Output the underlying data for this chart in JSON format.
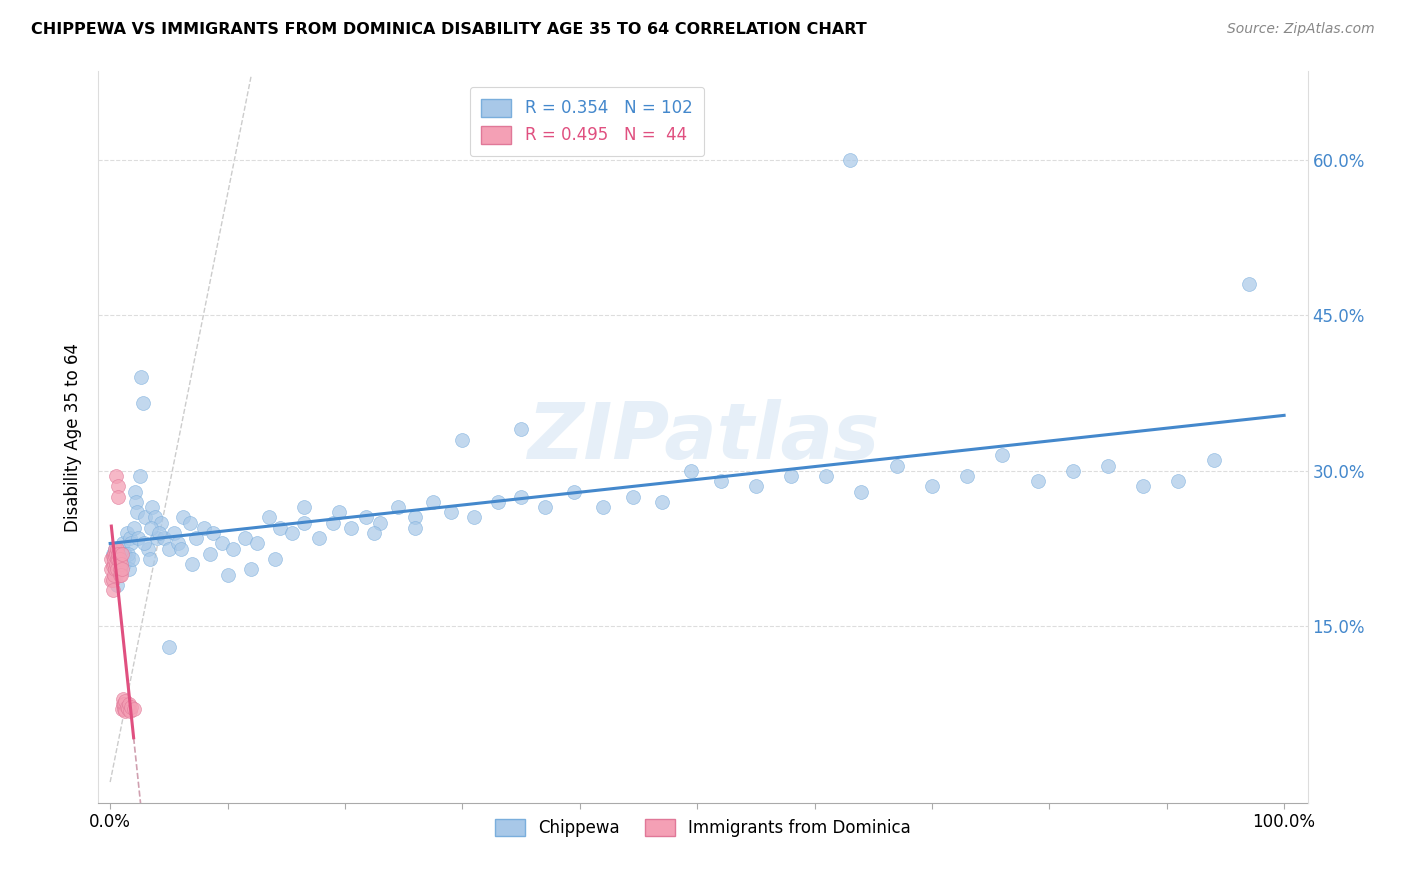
{
  "title": "CHIPPEWA VS IMMIGRANTS FROM DOMINICA DISABILITY AGE 35 TO 64 CORRELATION CHART",
  "source": "Source: ZipAtlas.com",
  "ylabel_label": "Disability Age 35 to 64",
  "legend1_label": "Chippewa",
  "legend2_label": "Immigrants from Dominica",
  "R1": 0.354,
  "N1": 102,
  "R2": 0.495,
  "N2": 44,
  "blue_color": "#a8c8e8",
  "pink_color": "#f4a0b5",
  "trend1_color": "#4488cc",
  "trend2_color": "#e05080",
  "watermark": "ZIPatlas",
  "chippewa_x": [
    0.002,
    0.003,
    0.004,
    0.005,
    0.006,
    0.007,
    0.008,
    0.009,
    0.01,
    0.011,
    0.012,
    0.013,
    0.014,
    0.015,
    0.016,
    0.017,
    0.018,
    0.02,
    0.021,
    0.022,
    0.023,
    0.025,
    0.026,
    0.028,
    0.03,
    0.032,
    0.034,
    0.036,
    0.038,
    0.04,
    0.043,
    0.046,
    0.05,
    0.054,
    0.058,
    0.062,
    0.068,
    0.073,
    0.08,
    0.088,
    0.095,
    0.105,
    0.115,
    0.125,
    0.135,
    0.145,
    0.155,
    0.165,
    0.178,
    0.19,
    0.205,
    0.218,
    0.23,
    0.245,
    0.26,
    0.275,
    0.29,
    0.31,
    0.33,
    0.35,
    0.37,
    0.395,
    0.42,
    0.445,
    0.47,
    0.495,
    0.52,
    0.55,
    0.58,
    0.61,
    0.64,
    0.67,
    0.7,
    0.73,
    0.76,
    0.79,
    0.82,
    0.85,
    0.88,
    0.91,
    0.94,
    0.012,
    0.015,
    0.019,
    0.024,
    0.029,
    0.035,
    0.042,
    0.05,
    0.06,
    0.07,
    0.085,
    0.1,
    0.12,
    0.14,
    0.165,
    0.195,
    0.225,
    0.26,
    0.3,
    0.35,
    0.63,
    0.97
  ],
  "chippewa_y": [
    0.22,
    0.215,
    0.225,
    0.2,
    0.19,
    0.21,
    0.205,
    0.215,
    0.225,
    0.23,
    0.21,
    0.22,
    0.24,
    0.215,
    0.205,
    0.235,
    0.23,
    0.245,
    0.28,
    0.27,
    0.26,
    0.295,
    0.39,
    0.365,
    0.255,
    0.225,
    0.215,
    0.265,
    0.255,
    0.235,
    0.25,
    0.235,
    0.225,
    0.24,
    0.23,
    0.255,
    0.25,
    0.235,
    0.245,
    0.24,
    0.23,
    0.225,
    0.235,
    0.23,
    0.255,
    0.245,
    0.24,
    0.25,
    0.235,
    0.25,
    0.245,
    0.255,
    0.25,
    0.265,
    0.255,
    0.27,
    0.26,
    0.255,
    0.27,
    0.275,
    0.265,
    0.28,
    0.265,
    0.275,
    0.27,
    0.3,
    0.29,
    0.285,
    0.295,
    0.295,
    0.28,
    0.305,
    0.285,
    0.295,
    0.315,
    0.29,
    0.3,
    0.305,
    0.285,
    0.29,
    0.31,
    0.22,
    0.22,
    0.215,
    0.235,
    0.23,
    0.245,
    0.24,
    0.13,
    0.225,
    0.21,
    0.22,
    0.2,
    0.205,
    0.215,
    0.265,
    0.26,
    0.24,
    0.245,
    0.33,
    0.34,
    0.6,
    0.48
  ],
  "dominica_x": [
    0.001,
    0.001,
    0.001,
    0.002,
    0.002,
    0.002,
    0.002,
    0.003,
    0.003,
    0.003,
    0.003,
    0.004,
    0.004,
    0.004,
    0.005,
    0.005,
    0.005,
    0.006,
    0.006,
    0.006,
    0.007,
    0.007,
    0.007,
    0.007,
    0.008,
    0.008,
    0.008,
    0.009,
    0.009,
    0.01,
    0.01,
    0.01,
    0.011,
    0.011,
    0.012,
    0.012,
    0.013,
    0.013,
    0.014,
    0.015,
    0.016,
    0.017,
    0.018,
    0.02
  ],
  "dominica_y": [
    0.215,
    0.205,
    0.195,
    0.218,
    0.208,
    0.195,
    0.185,
    0.22,
    0.21,
    0.2,
    0.215,
    0.205,
    0.225,
    0.218,
    0.295,
    0.21,
    0.22,
    0.215,
    0.205,
    0.225,
    0.215,
    0.285,
    0.275,
    0.22,
    0.205,
    0.2,
    0.215,
    0.21,
    0.2,
    0.22,
    0.205,
    0.07,
    0.075,
    0.08,
    0.07,
    0.075,
    0.068,
    0.078,
    0.072,
    0.07,
    0.075,
    0.068,
    0.072,
    0.07
  ],
  "xlim": [
    -0.01,
    1.02
  ],
  "ylim": [
    -0.02,
    0.685
  ],
  "yticks": [
    0.15,
    0.3,
    0.45,
    0.6
  ],
  "ytick_labels": [
    "15.0%",
    "30.0%",
    "45.0%",
    "60.0%"
  ],
  "xticks": [
    0.0,
    0.1,
    0.2,
    0.3,
    0.4,
    0.5,
    0.6,
    0.7,
    0.8,
    0.9,
    1.0
  ],
  "xtick_labels": [
    "0.0%",
    "",
    "",
    "",
    "",
    "",
    "",
    "",
    "",
    "",
    "100.0%"
  ]
}
